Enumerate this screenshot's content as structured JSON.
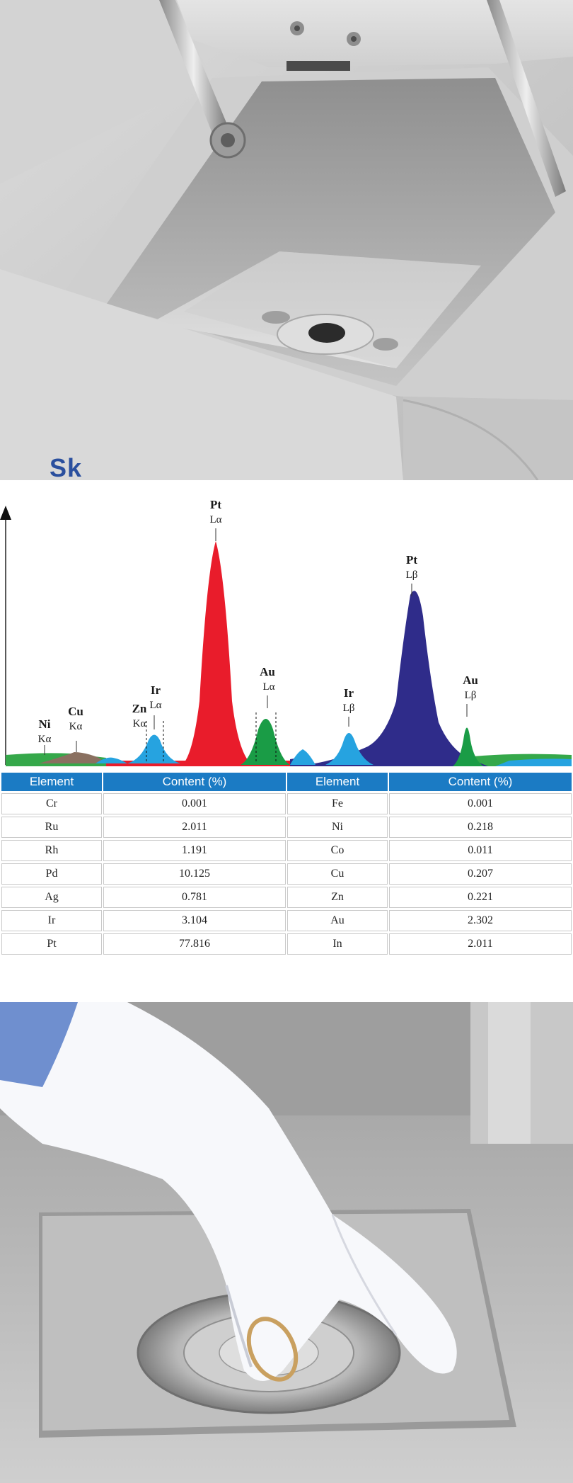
{
  "photo_top": {
    "brand_text": "Sk"
  },
  "chart_data": {
    "type": "area",
    "title": "",
    "xlabel": "",
    "ylabel": "",
    "grid": false,
    "legend": "none",
    "peaks": [
      {
        "element": "Ni",
        "line": "Kα",
        "color": "#8a6e5f",
        "relative_height": 0.04
      },
      {
        "element": "Cu",
        "line": "Kα",
        "color": "#7d7060",
        "relative_height": 0.05
      },
      {
        "element": "Zn",
        "line": "Kα",
        "color": "#2aa6e0",
        "relative_height": 0.07
      },
      {
        "element": "Ir",
        "line": "Lα",
        "color": "#2aa6e0",
        "relative_height": 0.12
      },
      {
        "element": "Pt",
        "line": "Lα",
        "color": "#e91c2b",
        "relative_height": 1.0
      },
      {
        "element": "Au",
        "line": "Lα",
        "color": "#1a9c46",
        "relative_height": 0.22
      },
      {
        "element": "Ir",
        "line": "Lβ",
        "color": "#2aa6e0",
        "relative_height": 0.13
      },
      {
        "element": "Pt",
        "line": "Lβ",
        "color": "#2f2c8a",
        "relative_height": 0.74
      },
      {
        "element": "Au",
        "line": "Lβ",
        "color": "#1a9c46",
        "relative_height": 0.18
      }
    ]
  },
  "table": {
    "headers": [
      "Element",
      "Content (%)",
      "Element",
      "Content (%)"
    ],
    "rows": [
      [
        "Cr",
        "0.001",
        "Fe",
        "0.001"
      ],
      [
        "Ru",
        "2.011",
        "Ni",
        "0.218"
      ],
      [
        "Rh",
        "1.191",
        "Co",
        "0.011"
      ],
      [
        "Pd",
        "10.125",
        "Cu",
        "0.207"
      ],
      [
        "Ag",
        "0.781",
        "Zn",
        "0.221"
      ],
      [
        "Ir",
        "3.104",
        "Au",
        "2.302"
      ],
      [
        "Pt",
        "77.816",
        "In",
        "2.011"
      ]
    ]
  },
  "colors": {
    "header_blue": "#1b7bc4",
    "pt_la": "#e91c2b",
    "pt_lb": "#2f2c8a",
    "au": "#1a9c46",
    "ir_zn": "#2aa6e0"
  }
}
